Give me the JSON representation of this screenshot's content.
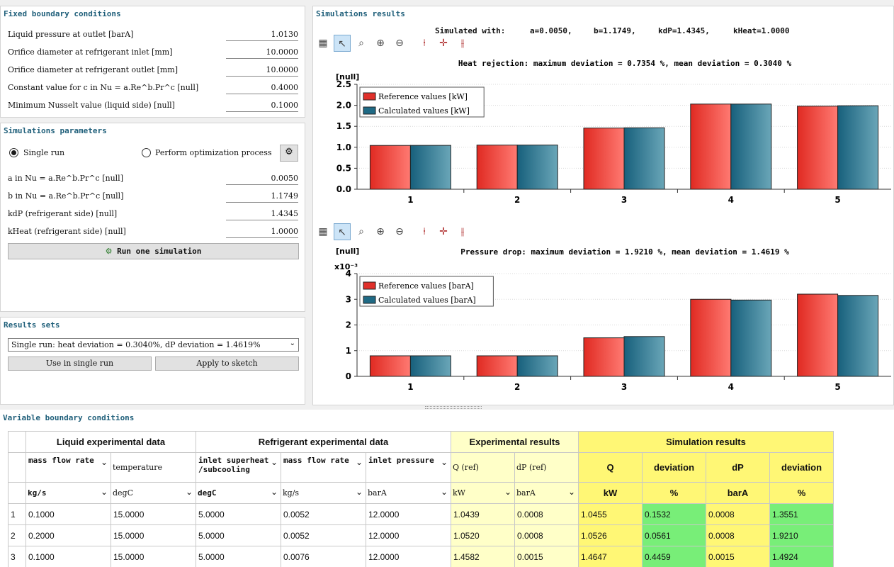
{
  "fixed": {
    "title": "Fixed boundary conditions",
    "rows": [
      {
        "label": "Liquid pressure at outlet [barA]",
        "value": "1.0130"
      },
      {
        "label": "Orifice diameter at refrigerant inlet [mm]",
        "value": "10.0000"
      },
      {
        "label": "Orifice diameter at refrigerant outlet [mm]",
        "value": "10.0000"
      },
      {
        "label": "Constant value for c in Nu = a.Re^b.Pr^c [null]",
        "value": "0.4000"
      },
      {
        "label": "Minimum Nusselt value (liquid side) [null]",
        "value": "0.1000"
      }
    ]
  },
  "params": {
    "title": "Simulations parameters",
    "single_run": "Single run",
    "optimize": "Perform optimization process",
    "rows": [
      {
        "label": "a in Nu = a.Re^b.Pr^c [null]",
        "value": "0.0050"
      },
      {
        "label": "b in Nu = a.Re^b.Pr^c [null]",
        "value": "1.1749"
      },
      {
        "label": "kdP (refrigerant side) [null]",
        "value": "1.4345"
      },
      {
        "label": "kHeat (refrigerant side) [null]",
        "value": "1.0000"
      }
    ],
    "run_button": "Run one simulation"
  },
  "results_sets": {
    "title": "Results sets",
    "selected": "Single run: heat deviation = 0.3040%, dP deviation = 1.4619%",
    "use_button": "Use in single run",
    "apply_button": "Apply to sketch"
  },
  "sim": {
    "title": "Simulations results",
    "label": "Simulated with:",
    "a": "a=0.0050,",
    "b": "b=1.1749,",
    "kdp": "kdP=1.4345,",
    "kheat": "kHeat=1.0000"
  },
  "chart_data": [
    {
      "type": "bar",
      "title": "Heat rejection: maximum deviation = 0.7354 %, mean deviation = 0.3040 %",
      "ylabel": "[null]",
      "categories": [
        "1",
        "2",
        "3",
        "4",
        "5"
      ],
      "ylim": [
        0,
        2.5
      ],
      "yticks": [
        "0.0",
        "0.5",
        "1.0",
        "1.5",
        "2.0",
        "2.5"
      ],
      "series": [
        {
          "name": "Reference values [kW]",
          "values": [
            1.0439,
            1.052,
            1.4582,
            2.03,
            1.98
          ]
        },
        {
          "name": "Calculated values [kW]",
          "values": [
            1.0455,
            1.0526,
            1.4647,
            2.03,
            1.99
          ]
        }
      ],
      "colors": [
        "#e0302a",
        "#1f6a85"
      ]
    },
    {
      "type": "bar",
      "title": "Pressure drop: maximum deviation = 1.9210 %, mean deviation = 1.4619 %",
      "ylabel": "[null]",
      "yscale": "x10⁻³",
      "categories": [
        "1",
        "2",
        "3",
        "4",
        "5"
      ],
      "ylim": [
        0,
        4
      ],
      "yticks": [
        "0",
        "1",
        "2",
        "3",
        "4"
      ],
      "series": [
        {
          "name": "Reference values [barA]",
          "values": [
            0.8,
            0.8,
            1.5,
            3.0,
            3.2
          ]
        },
        {
          "name": "Calculated values [barA]",
          "values": [
            0.8,
            0.8,
            1.55,
            2.97,
            3.15
          ]
        }
      ],
      "colors": [
        "#e0302a",
        "#1f6a85"
      ]
    }
  ],
  "variable": {
    "title": "Variable boundary conditions",
    "groups": {
      "liquid": "Liquid experimental data",
      "refrigerant": "Refrigerant experimental data",
      "exp": "Experimental results",
      "sim": "Simulation results"
    },
    "cols": {
      "mass_flow": "mass flow rate",
      "temperature": "temperature",
      "superheat": "inlet superheat /subcooling",
      "r_mass_flow": "mass flow rate",
      "inlet_pressure": "inlet pressure",
      "q_ref": "Q (ref)",
      "dp_ref": "dP (ref)",
      "q": "Q",
      "dev1": "deviation",
      "dp": "dP",
      "dev2": "deviation"
    },
    "units": {
      "mass_flow": "kg/s",
      "temperature": "degC",
      "superheat": "degC",
      "r_mass_flow": "kg/s",
      "inlet_pressure": "barA",
      "q_ref": "kW",
      "dp_ref": "barA",
      "q": "kW",
      "dev1": "%",
      "dp": "barA",
      "dev2": "%"
    },
    "rows": [
      [
        "1",
        "0.1000",
        "15.0000",
        "5.0000",
        "0.0052",
        "12.0000",
        "1.0439",
        "0.0008",
        "1.0455",
        "0.1532",
        "0.0008",
        "1.3551"
      ],
      [
        "2",
        "0.2000",
        "15.0000",
        "5.0000",
        "0.0052",
        "12.0000",
        "1.0520",
        "0.0008",
        "1.0526",
        "0.0561",
        "0.0008",
        "1.9210"
      ],
      [
        "3",
        "0.1000",
        "15.0000",
        "5.0000",
        "0.0076",
        "12.0000",
        "1.4582",
        "0.0015",
        "1.4647",
        "0.4459",
        "0.0015",
        "1.4924"
      ]
    ]
  }
}
